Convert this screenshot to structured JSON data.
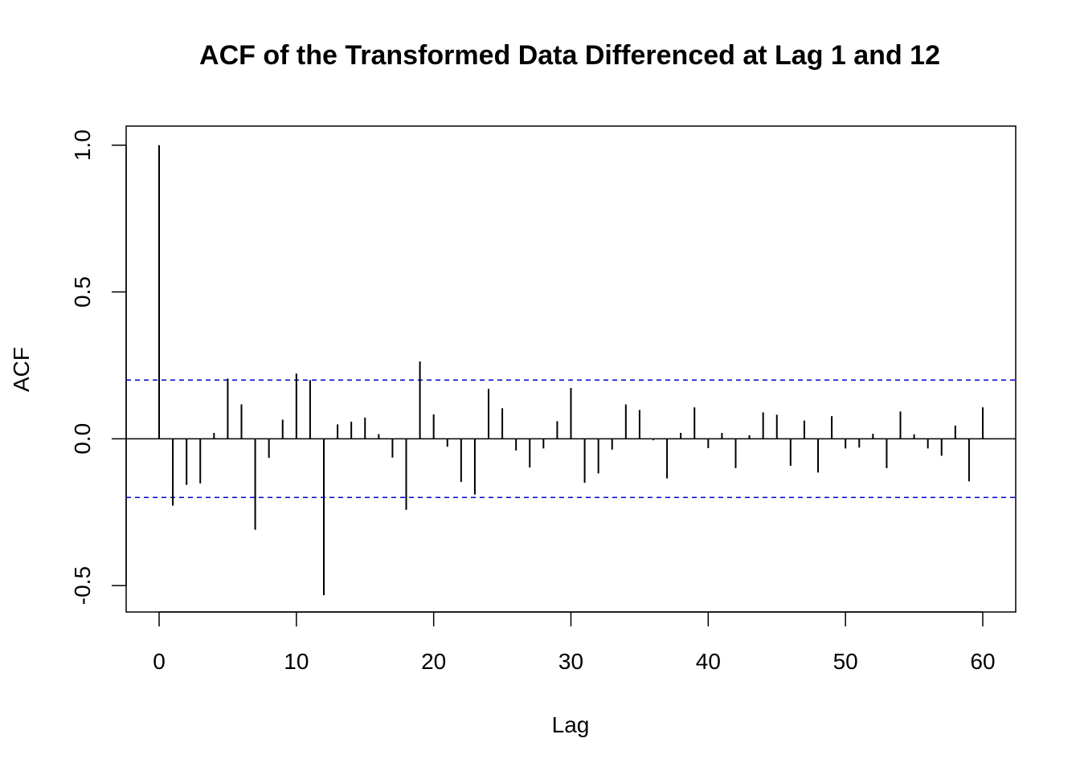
{
  "chart_data": {
    "type": "bar",
    "title": "ACF of the Transformed Data Differenced at Lag 1 and 12",
    "xlabel": "Lag",
    "ylabel": "ACF",
    "xlim": [
      -2.4,
      62.4
    ],
    "ylim": [
      -0.59,
      1.065
    ],
    "xticks": [
      0,
      10,
      20,
      30,
      40,
      50,
      60
    ],
    "xtick_labels": [
      "0",
      "10",
      "20",
      "30",
      "40",
      "50",
      "60"
    ],
    "yticks": [
      -0.5,
      0.0,
      0.5,
      1.0
    ],
    "ytick_labels": [
      "-0.5",
      "0.0",
      "0.5",
      "1.0"
    ],
    "confidence_band": 0.2,
    "confidence_color": "#0000cc",
    "spike_color": "#000000",
    "grid": false,
    "lags": [
      0,
      1,
      2,
      3,
      4,
      5,
      6,
      7,
      8,
      9,
      10,
      11,
      12,
      13,
      14,
      15,
      16,
      17,
      18,
      19,
      20,
      21,
      22,
      23,
      24,
      25,
      26,
      27,
      28,
      29,
      30,
      31,
      32,
      33,
      34,
      35,
      36,
      37,
      38,
      39,
      40,
      41,
      42,
      43,
      44,
      45,
      46,
      47,
      48,
      49,
      50,
      51,
      52,
      53,
      54,
      55,
      56,
      57,
      58,
      59,
      60
    ],
    "values": [
      1.0,
      -0.228,
      -0.157,
      -0.152,
      0.02,
      0.205,
      0.117,
      -0.31,
      -0.065,
      0.065,
      0.222,
      0.2,
      -0.533,
      0.049,
      0.058,
      0.072,
      0.016,
      -0.064,
      -0.242,
      0.263,
      0.083,
      -0.027,
      -0.147,
      -0.19,
      0.17,
      0.104,
      -0.04,
      -0.098,
      -0.033,
      0.06,
      0.173,
      -0.15,
      -0.118,
      -0.037,
      0.117,
      0.098,
      -0.005,
      -0.135,
      0.02,
      0.107,
      -0.032,
      0.02,
      -0.1,
      0.012,
      0.09,
      0.082,
      -0.092,
      0.062,
      -0.115,
      0.077,
      -0.033,
      -0.03,
      0.017,
      -0.1,
      0.093,
      0.015,
      -0.033,
      -0.058,
      0.045,
      -0.145,
      0.107
    ]
  }
}
